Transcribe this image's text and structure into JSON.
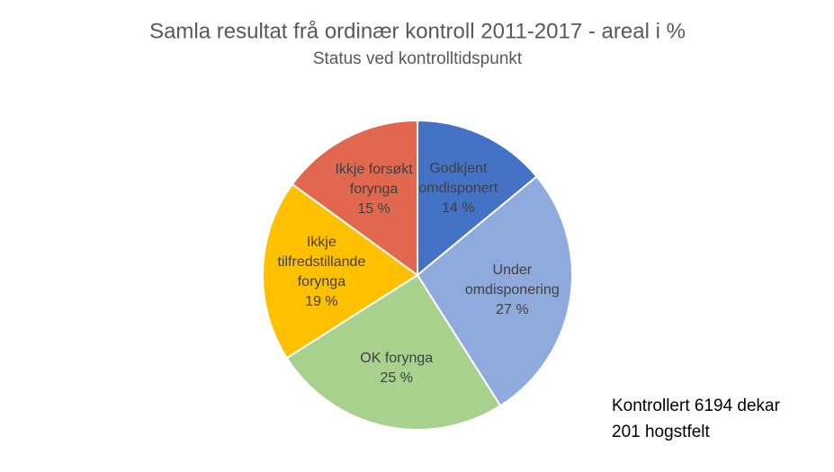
{
  "chart_data": {
    "type": "pie",
    "title": "Samla resultat frå ordinær kontroll 2011-2017 - areal i %",
    "subtitle": "Status ved kontrolltidspunkt",
    "categories": [
      "Godkjent omdisponert",
      "Under omdisponering",
      "OK forynga",
      "Ikkje tilfredstillande forynga",
      "Ikkje forsøkt forynga"
    ],
    "values": [
      14,
      27,
      25,
      19,
      15
    ],
    "value_labels": [
      "14 %",
      "27 %",
      "25 %",
      "19 %",
      "15 %"
    ],
    "colors": [
      "#4472c4",
      "#8faadc",
      "#a9d18e",
      "#ffc000",
      "#e2674f"
    ],
    "annotations": [
      "Kontrollert 6194 dekar",
      "201 hogstfelt"
    ]
  }
}
